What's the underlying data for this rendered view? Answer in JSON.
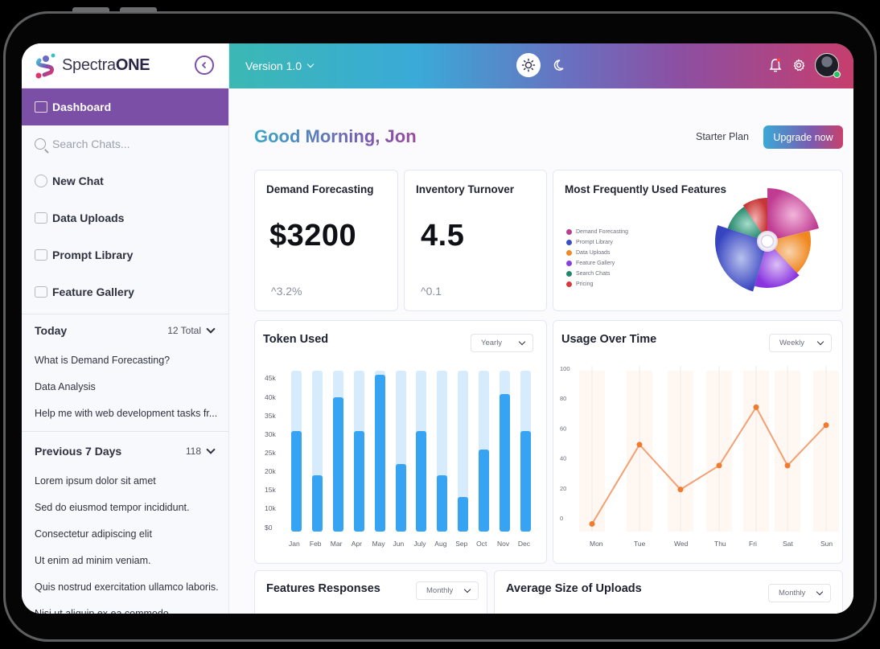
{
  "app": {
    "brand_prefix": "Spectra",
    "brand_suffix": "ONE"
  },
  "sidebar": {
    "active_item": "Dashboard",
    "search_placeholder": "Search Chats...",
    "items": [
      {
        "label": "New Chat",
        "icon": "chat-bubble-icon"
      },
      {
        "label": "Data Uploads",
        "icon": "folder-upload-icon"
      },
      {
        "label": "Prompt Library",
        "icon": "library-icon"
      },
      {
        "label": "Feature Gallery",
        "icon": "gallery-folder-icon"
      }
    ],
    "sections": [
      {
        "title": "Today",
        "count": "12 Total",
        "chats": [
          "What is Demand Forecasting?",
          "Data Analysis",
          "Help me with web development tasks fr..."
        ]
      },
      {
        "title": "Previous 7 Days",
        "count": "118",
        "chats": [
          "Lorem ipsum dolor sit amet",
          "Sed do eiusmod tempor incididunt.",
          "Consectetur adipiscing elit",
          "Ut enim ad minim veniam.",
          "Quis nostrud exercitation ullamco laboris.",
          "Nisi ut aliquip ex ea commodo"
        ]
      }
    ]
  },
  "topbar": {
    "version": "Version 1.0"
  },
  "header": {
    "greeting": "Good Morning, Jon",
    "plan": "Starter Plan",
    "upgrade": "Upgrade now"
  },
  "kpis": [
    {
      "title": "Demand Forecasting",
      "value": "$3200",
      "delta": "^3.2%"
    },
    {
      "title": "Inventory Turnover",
      "value": "4.5",
      "delta": "^0.1"
    }
  ],
  "features_card": {
    "title": "Most Frequently Used Features",
    "legend": [
      {
        "label": "Demand Forecasting",
        "color": "#b8418f"
      },
      {
        "label": "Prompt Library",
        "color": "#3b4fc4"
      },
      {
        "label": "Data Uploads",
        "color": "#f08a24"
      },
      {
        "label": "Feature Gallery",
        "color": "#8a3fe0"
      },
      {
        "label": "Search Chats",
        "color": "#23866d"
      },
      {
        "label": "Pricing",
        "color": "#d83a3a"
      }
    ]
  },
  "token_card": {
    "title": "Token Used",
    "filter": "Yearly"
  },
  "usage_card": {
    "title": "Usage Over Time",
    "filter": "Weekly"
  },
  "responses_card": {
    "title": "Features Responses",
    "filter": "Monthly"
  },
  "uploads_card": {
    "title": "Average Size of Uploads",
    "filter": "Monthly"
  },
  "chart_data": [
    {
      "type": "bar",
      "title": "Token Used",
      "categories": [
        "Jan",
        "Feb",
        "Mar",
        "Apr",
        "May",
        "Jun",
        "July",
        "Aug",
        "Sep",
        "Oct",
        "Nov",
        "Dec"
      ],
      "values": [
        29000,
        17000,
        38000,
        29000,
        44000,
        20000,
        29000,
        17000,
        11000,
        24000,
        39000,
        29000
      ],
      "yticks": [
        "$0",
        "10k",
        "15k",
        "20k",
        "25k",
        "30k",
        "35k",
        "40k",
        "45k"
      ],
      "ylim": [
        0,
        45000
      ]
    },
    {
      "type": "line",
      "title": "Usage Over Time",
      "categories": [
        "Mon",
        "Tue",
        "Wed",
        "Thu",
        "Fri",
        "Sat",
        "Sun"
      ],
      "values": [
        -4,
        49,
        19,
        35,
        74,
        35,
        62
      ],
      "yticks": [
        "0",
        "20",
        "40",
        "60",
        "80",
        "100"
      ],
      "ylim": [
        0,
        100
      ],
      "color": "#f07a2e"
    },
    {
      "type": "pie",
      "title": "Most Frequently Used Features",
      "categories": [
        "Demand Forecasting",
        "Data Uploads",
        "Feature Gallery",
        "Prompt Library",
        "Search Chats",
        "Pricing"
      ],
      "values": [
        24,
        17,
        16,
        23,
        11,
        9
      ]
    }
  ]
}
